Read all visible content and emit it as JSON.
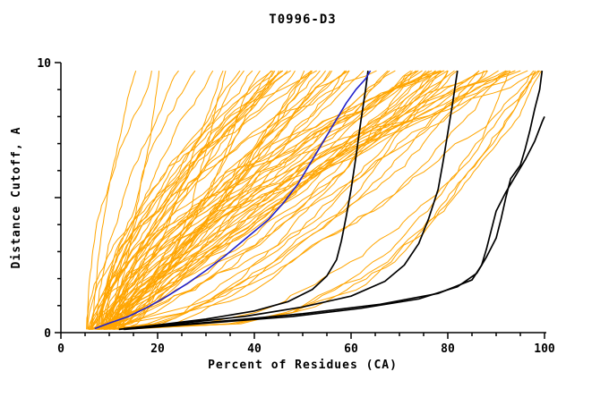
{
  "title": "T0996-D3",
  "chart_data": {
    "type": "line",
    "title": "T0996-D3",
    "xlabel": "Percent of Residues (CA)",
    "ylabel": "Distance Cutoff, A",
    "xlim": [
      0,
      100
    ],
    "ylim": [
      0,
      10
    ],
    "x_ticks": [
      0,
      20,
      40,
      60,
      80,
      100
    ],
    "x_minor_step": 5,
    "y_ticks_labeled": [
      0,
      10
    ],
    "y_major_ticks": [
      0,
      5,
      10
    ],
    "y_minor_step": 1,
    "grid": false,
    "legend": "none",
    "colors": {
      "ensemble": "#FFA500",
      "highlight": "#2020CC",
      "reference": "#000000",
      "axis": "#000000",
      "background": "#FFFFFF"
    },
    "ensemble": {
      "description": "approx. 85 overlapping orange prediction curves fanning from lower-left (x 5-13, y 0.1) to the top (y 9.7) at x positions spread from 14 to 100; many hug the bottom (y<1.5) until x 80-100",
      "count": 85,
      "seed": 7,
      "x_start_range": [
        5,
        13
      ],
      "x_top_range": [
        14,
        100
      ],
      "y_start": 0.12,
      "y_end": 9.7
    },
    "series": [
      {
        "name": "highlighted-model-blue",
        "color": "#2020CC",
        "width": 1.6,
        "points": [
          [
            7,
            0.15
          ],
          [
            10,
            0.35
          ],
          [
            14,
            0.6
          ],
          [
            18,
            0.95
          ],
          [
            22,
            1.35
          ],
          [
            26,
            1.8
          ],
          [
            30,
            2.3
          ],
          [
            34,
            2.85
          ],
          [
            37,
            3.3
          ],
          [
            40,
            3.75
          ],
          [
            43,
            4.2
          ],
          [
            46,
            4.8
          ],
          [
            49,
            5.5
          ],
          [
            51,
            6.1
          ],
          [
            53,
            6.7
          ],
          [
            55,
            7.3
          ],
          [
            57,
            7.9
          ],
          [
            59,
            8.5
          ],
          [
            61,
            9.0
          ],
          [
            63,
            9.4
          ],
          [
            64,
            9.7
          ]
        ]
      },
      {
        "name": "reference-model-black-1",
        "color": "#000000",
        "width": 1.7,
        "points": [
          [
            12,
            0.12
          ],
          [
            20,
            0.28
          ],
          [
            30,
            0.5
          ],
          [
            40,
            0.8
          ],
          [
            47,
            1.15
          ],
          [
            52,
            1.6
          ],
          [
            55,
            2.1
          ],
          [
            57,
            2.7
          ],
          [
            58,
            3.4
          ],
          [
            59,
            4.3
          ],
          [
            60,
            5.3
          ],
          [
            61,
            6.5
          ],
          [
            62,
            7.8
          ],
          [
            63,
            9.0
          ],
          [
            63.5,
            9.7
          ]
        ]
      },
      {
        "name": "reference-model-black-2",
        "color": "#000000",
        "width": 1.7,
        "points": [
          [
            13,
            0.15
          ],
          [
            25,
            0.35
          ],
          [
            38,
            0.6
          ],
          [
            50,
            0.95
          ],
          [
            60,
            1.35
          ],
          [
            67,
            1.9
          ],
          [
            71,
            2.5
          ],
          [
            74,
            3.3
          ],
          [
            76,
            4.2
          ],
          [
            78,
            5.3
          ],
          [
            79,
            6.3
          ],
          [
            80,
            7.4
          ],
          [
            81,
            8.5
          ],
          [
            82,
            9.7
          ]
        ]
      },
      {
        "name": "reference-model-black-3",
        "color": "#000000",
        "width": 1.7,
        "points": [
          [
            13,
            0.12
          ],
          [
            30,
            0.35
          ],
          [
            48,
            0.6
          ],
          [
            62,
            0.9
          ],
          [
            74,
            1.25
          ],
          [
            82,
            1.7
          ],
          [
            86,
            2.2
          ],
          [
            88,
            2.8
          ],
          [
            90,
            3.5
          ],
          [
            91,
            4.2
          ],
          [
            92,
            5.0
          ],
          [
            93,
            5.7
          ],
          [
            95,
            6.2
          ],
          [
            96,
            6.8
          ],
          [
            97,
            7.5
          ],
          [
            98,
            8.3
          ],
          [
            99,
            9.0
          ],
          [
            99.5,
            9.7
          ]
        ]
      },
      {
        "name": "reference-model-black-4",
        "color": "#000000",
        "width": 1.7,
        "points": [
          [
            14,
            0.15
          ],
          [
            32,
            0.4
          ],
          [
            50,
            0.7
          ],
          [
            66,
            1.05
          ],
          [
            78,
            1.45
          ],
          [
            85,
            1.95
          ],
          [
            87,
            2.5
          ],
          [
            88,
            3.1
          ],
          [
            89,
            3.8
          ],
          [
            90,
            4.5
          ],
          [
            92,
            5.2
          ],
          [
            94,
            5.8
          ],
          [
            96,
            6.4
          ],
          [
            98,
            7.1
          ],
          [
            99.5,
            7.8
          ],
          [
            100,
            8.0
          ]
        ]
      }
    ]
  }
}
